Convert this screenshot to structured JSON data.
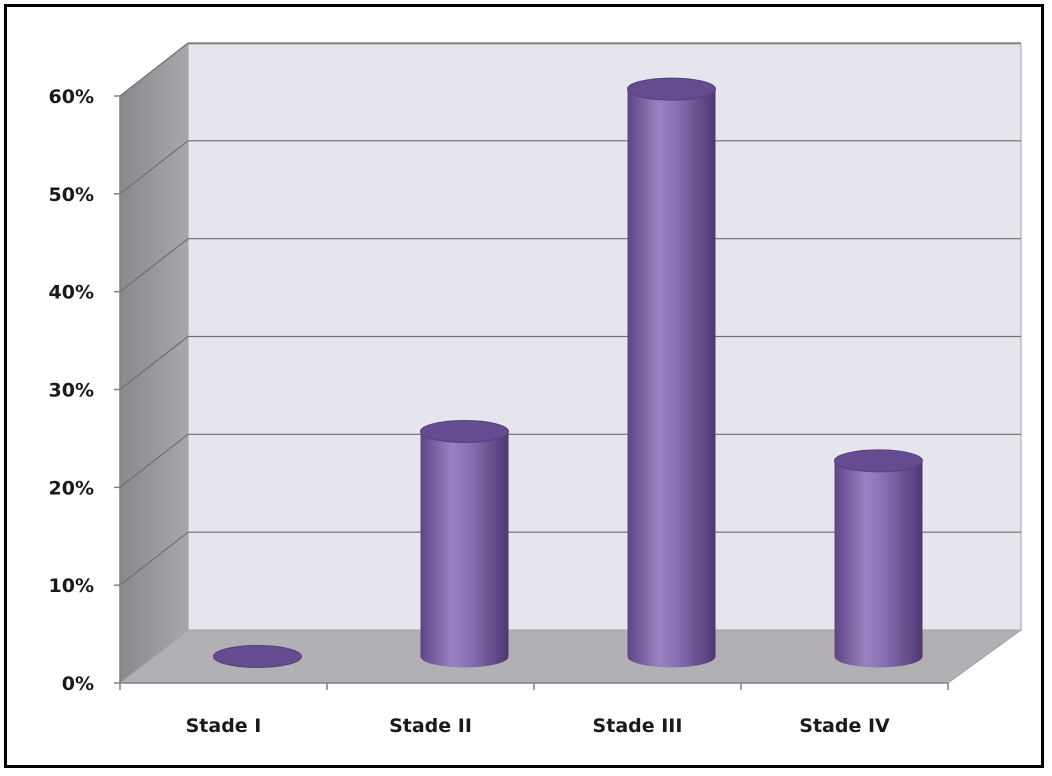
{
  "chart_data": {
    "type": "bar",
    "categories": [
      "Stade I",
      "Stade II",
      "Stade III",
      "Stade IV"
    ],
    "values": [
      0,
      23,
      58,
      20
    ],
    "y_ticks": [
      "0%",
      "10%",
      "20%",
      "30%",
      "40%",
      "50%",
      "60%"
    ],
    "ylim": [
      0,
      60
    ],
    "grid": true,
    "colors": {
      "bar": "#7f65a8",
      "bar_dark": "#5a4480",
      "bar_top": "#6a5090",
      "wall": "#e8e6ee",
      "side_wall": "#8c8a8f",
      "floor": "#b3b1b6"
    }
  }
}
